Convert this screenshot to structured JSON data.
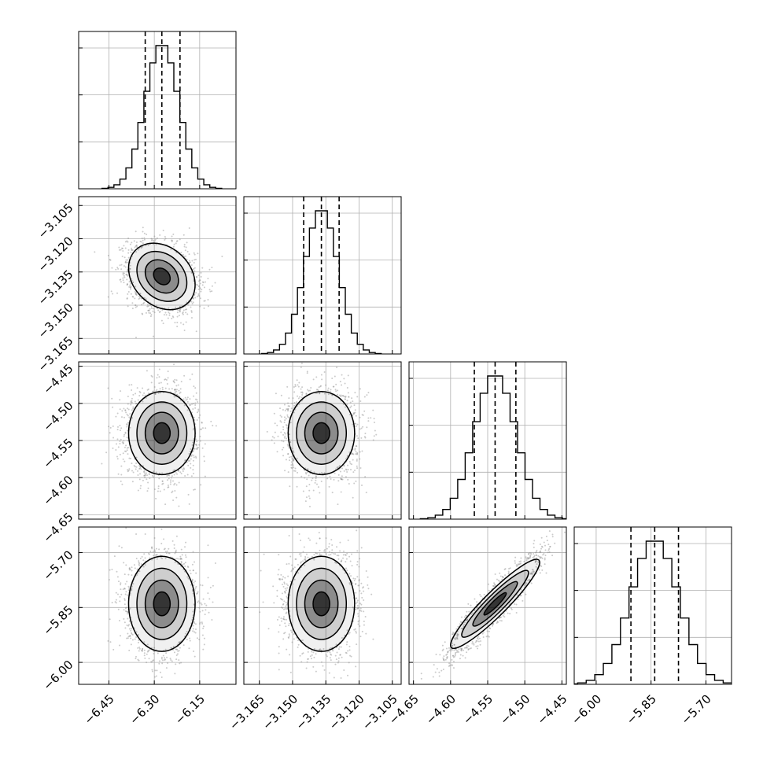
{
  "chart_data": {
    "type": "corner",
    "grid": true,
    "parameters": [
      {
        "center": -6.275,
        "sigma": 0.055,
        "range": [
          -6.55,
          -6.03
        ],
        "ticks": [
          -6.45,
          -6.3,
          -6.15
        ],
        "tick_labels": [
          "−6.45",
          "−6.30",
          "−6.15"
        ],
        "quantiles": [
          -6.33,
          -6.275,
          -6.215
        ]
      },
      {
        "center": -3.137,
        "sigma": 0.0075,
        "range": [
          -3.172,
          -3.101
        ],
        "ticks": [
          -3.165,
          -3.15,
          -3.135,
          -3.12,
          -3.105
        ],
        "tick_labels": [
          "−3.165",
          "−3.150",
          "−3.135",
          "−3.120",
          "−3.105"
        ],
        "quantiles": [
          -3.145,
          -3.137,
          -3.129
        ]
      },
      {
        "center": -4.54,
        "sigma": 0.028,
        "range": [
          -4.656,
          -4.444
        ],
        "ticks": [
          -4.65,
          -4.6,
          -4.55,
          -4.5,
          -4.45
        ],
        "tick_labels": [
          "−4.65",
          "−4.60",
          "−4.55",
          "−4.50",
          "−4.45"
        ],
        "quantiles": [
          -4.568,
          -4.54,
          -4.512
        ]
      },
      {
        "center": -5.84,
        "sigma": 0.065,
        "range": [
          -6.06,
          -5.63
        ],
        "ticks": [
          -6.0,
          -5.85,
          -5.7
        ],
        "tick_labels": [
          "−6.00",
          "−5.85",
          "−5.70"
        ],
        "quantiles": [
          -5.905,
          -5.84,
          -5.775
        ]
      }
    ],
    "correlations": {
      "0-1": -0.25,
      "0-2": 0.0,
      "0-3": 0.0,
      "1-2": 0.0,
      "1-3": 0.0,
      "2-3": 0.93
    },
    "contour_levels_sigma": [
      0.5,
      1.0,
      1.5,
      2.0
    ],
    "n_samples_shown": 2500,
    "colors": {
      "line": "#000000",
      "density": "#000000",
      "points": "#8c8c8c",
      "grid": "#b0b0b0"
    }
  }
}
